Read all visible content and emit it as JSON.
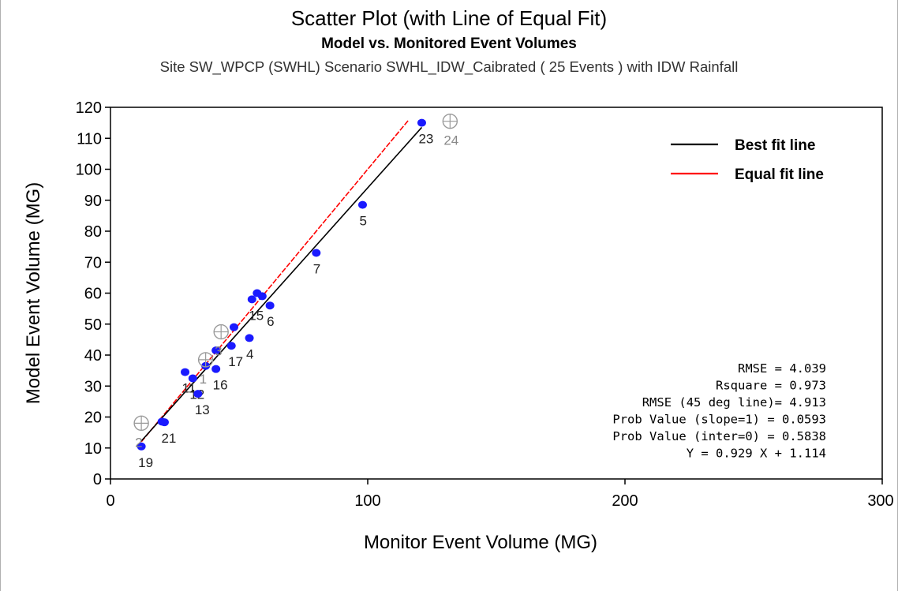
{
  "header": {
    "title": "Scatter Plot (with Line of Equal Fit)",
    "subtitle": "Model vs. Monitored Event Volumes",
    "caption": "Site SW_WPCP (SWHL) Scenario SWHL_IDW_Caibrated ( 25 Events ) with IDW Rainfall"
  },
  "colors": {
    "points": "#1a1aff",
    "best_fit": "#000000",
    "equal_fit": "#ff0000",
    "excluded": "#9a9a9a"
  },
  "chart_data": {
    "type": "scatter",
    "title": "Scatter Plot (with Line of Equal Fit)",
    "xlabel": "Monitor Event Volume (MG)",
    "ylabel": "Model Event Volume (MG)",
    "xlim": [
      0,
      300
    ],
    "ylim": [
      0,
      120
    ],
    "x_ticks": [
      0,
      100,
      200,
      300
    ],
    "y_ticks": [
      0,
      10,
      20,
      30,
      40,
      50,
      60,
      70,
      80,
      90,
      100,
      110,
      120
    ],
    "grid": false,
    "legend_position": "top-right",
    "legend": [
      {
        "label": "Best fit line",
        "color": "#000000"
      },
      {
        "label": "Equal fit line",
        "color": "#ff0000"
      }
    ],
    "points": [
      {
        "x": 12,
        "y": 10.5,
        "label": "19"
      },
      {
        "x": 20,
        "y": 18.5,
        "label": ""
      },
      {
        "x": 21,
        "y": 18.3,
        "label": "21"
      },
      {
        "x": 29,
        "y": 34.5,
        "label": "11"
      },
      {
        "x": 32,
        "y": 32.5,
        "label": "12"
      },
      {
        "x": 34,
        "y": 27.5,
        "label": "13"
      },
      {
        "x": 37,
        "y": 36.5,
        "label": ""
      },
      {
        "x": 41,
        "y": 35.5,
        "label": "16"
      },
      {
        "x": 41,
        "y": 41.5,
        "label": ""
      },
      {
        "x": 47,
        "y": 43,
        "label": "17"
      },
      {
        "x": 48,
        "y": 49,
        "label": ""
      },
      {
        "x": 54,
        "y": 45.5,
        "label": "4"
      },
      {
        "x": 55,
        "y": 58,
        "label": "15"
      },
      {
        "x": 57,
        "y": 60,
        "label": ""
      },
      {
        "x": 59,
        "y": 59,
        "label": ""
      },
      {
        "x": 62,
        "y": 56,
        "label": "6"
      },
      {
        "x": 80,
        "y": 73,
        "label": "7"
      },
      {
        "x": 98,
        "y": 88.5,
        "label": "5"
      },
      {
        "x": 121,
        "y": 115,
        "label": "23"
      }
    ],
    "excluded_points": [
      {
        "x": 12,
        "y": 18,
        "label": "2"
      },
      {
        "x": 37,
        "y": 38.5,
        "label": "1"
      },
      {
        "x": 43,
        "y": 47.5,
        "label": "3"
      },
      {
        "x": 132,
        "y": 115.5,
        "label": "24"
      }
    ],
    "best_fit": {
      "slope": 0.929,
      "intercept": 1.114,
      "x_range": [
        12,
        121
      ]
    },
    "equal_fit": {
      "slope": 1,
      "intercept": 0,
      "x_range": [
        12,
        116
      ]
    },
    "stats": [
      "RMSE = 4.039",
      "Rsquare = 0.973",
      "RMSE (45 deg line)= 4.913",
      "Prob Value (slope=1) = 0.0593",
      "Prob Value (inter=0) = 0.5838",
      "Y = 0.929 X +  1.114"
    ]
  }
}
